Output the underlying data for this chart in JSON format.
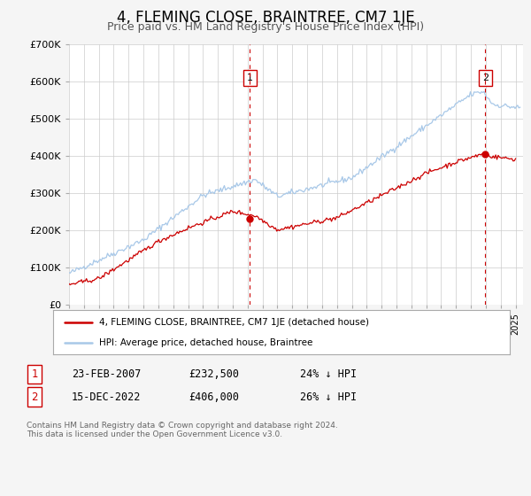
{
  "title": "4, FLEMING CLOSE, BRAINTREE, CM7 1JE",
  "subtitle": "Price paid vs. HM Land Registry's House Price Index (HPI)",
  "ylim": [
    0,
    700000
  ],
  "yticks": [
    0,
    100000,
    200000,
    300000,
    400000,
    500000,
    600000,
    700000
  ],
  "ytick_labels": [
    "£0",
    "£100K",
    "£200K",
    "£300K",
    "£400K",
    "£500K",
    "£600K",
    "£700K"
  ],
  "xlim_start": 1995.0,
  "xlim_end": 2025.5,
  "hpi_color": "#a8c8e8",
  "price_color": "#cc0000",
  "vline_color": "#cc0000",
  "marker1_x": 2007.14,
  "marker1_y": 232500,
  "marker2_x": 2022.96,
  "marker2_y": 406000,
  "legend_line1": "4, FLEMING CLOSE, BRAINTREE, CM7 1JE (detached house)",
  "legend_line2": "HPI: Average price, detached house, Braintree",
  "table_row1_num": "1",
  "table_row1_date": "23-FEB-2007",
  "table_row1_price": "£232,500",
  "table_row1_hpi": "24% ↓ HPI",
  "table_row2_num": "2",
  "table_row2_date": "15-DEC-2022",
  "table_row2_price": "£406,000",
  "table_row2_hpi": "26% ↓ HPI",
  "footer": "Contains HM Land Registry data © Crown copyright and database right 2024.\nThis data is licensed under the Open Government Licence v3.0.",
  "bg_color": "#f5f5f5",
  "plot_bg_color": "#ffffff",
  "grid_color": "#cccccc",
  "title_fontsize": 12,
  "subtitle_fontsize": 9,
  "axis_fontsize": 8
}
